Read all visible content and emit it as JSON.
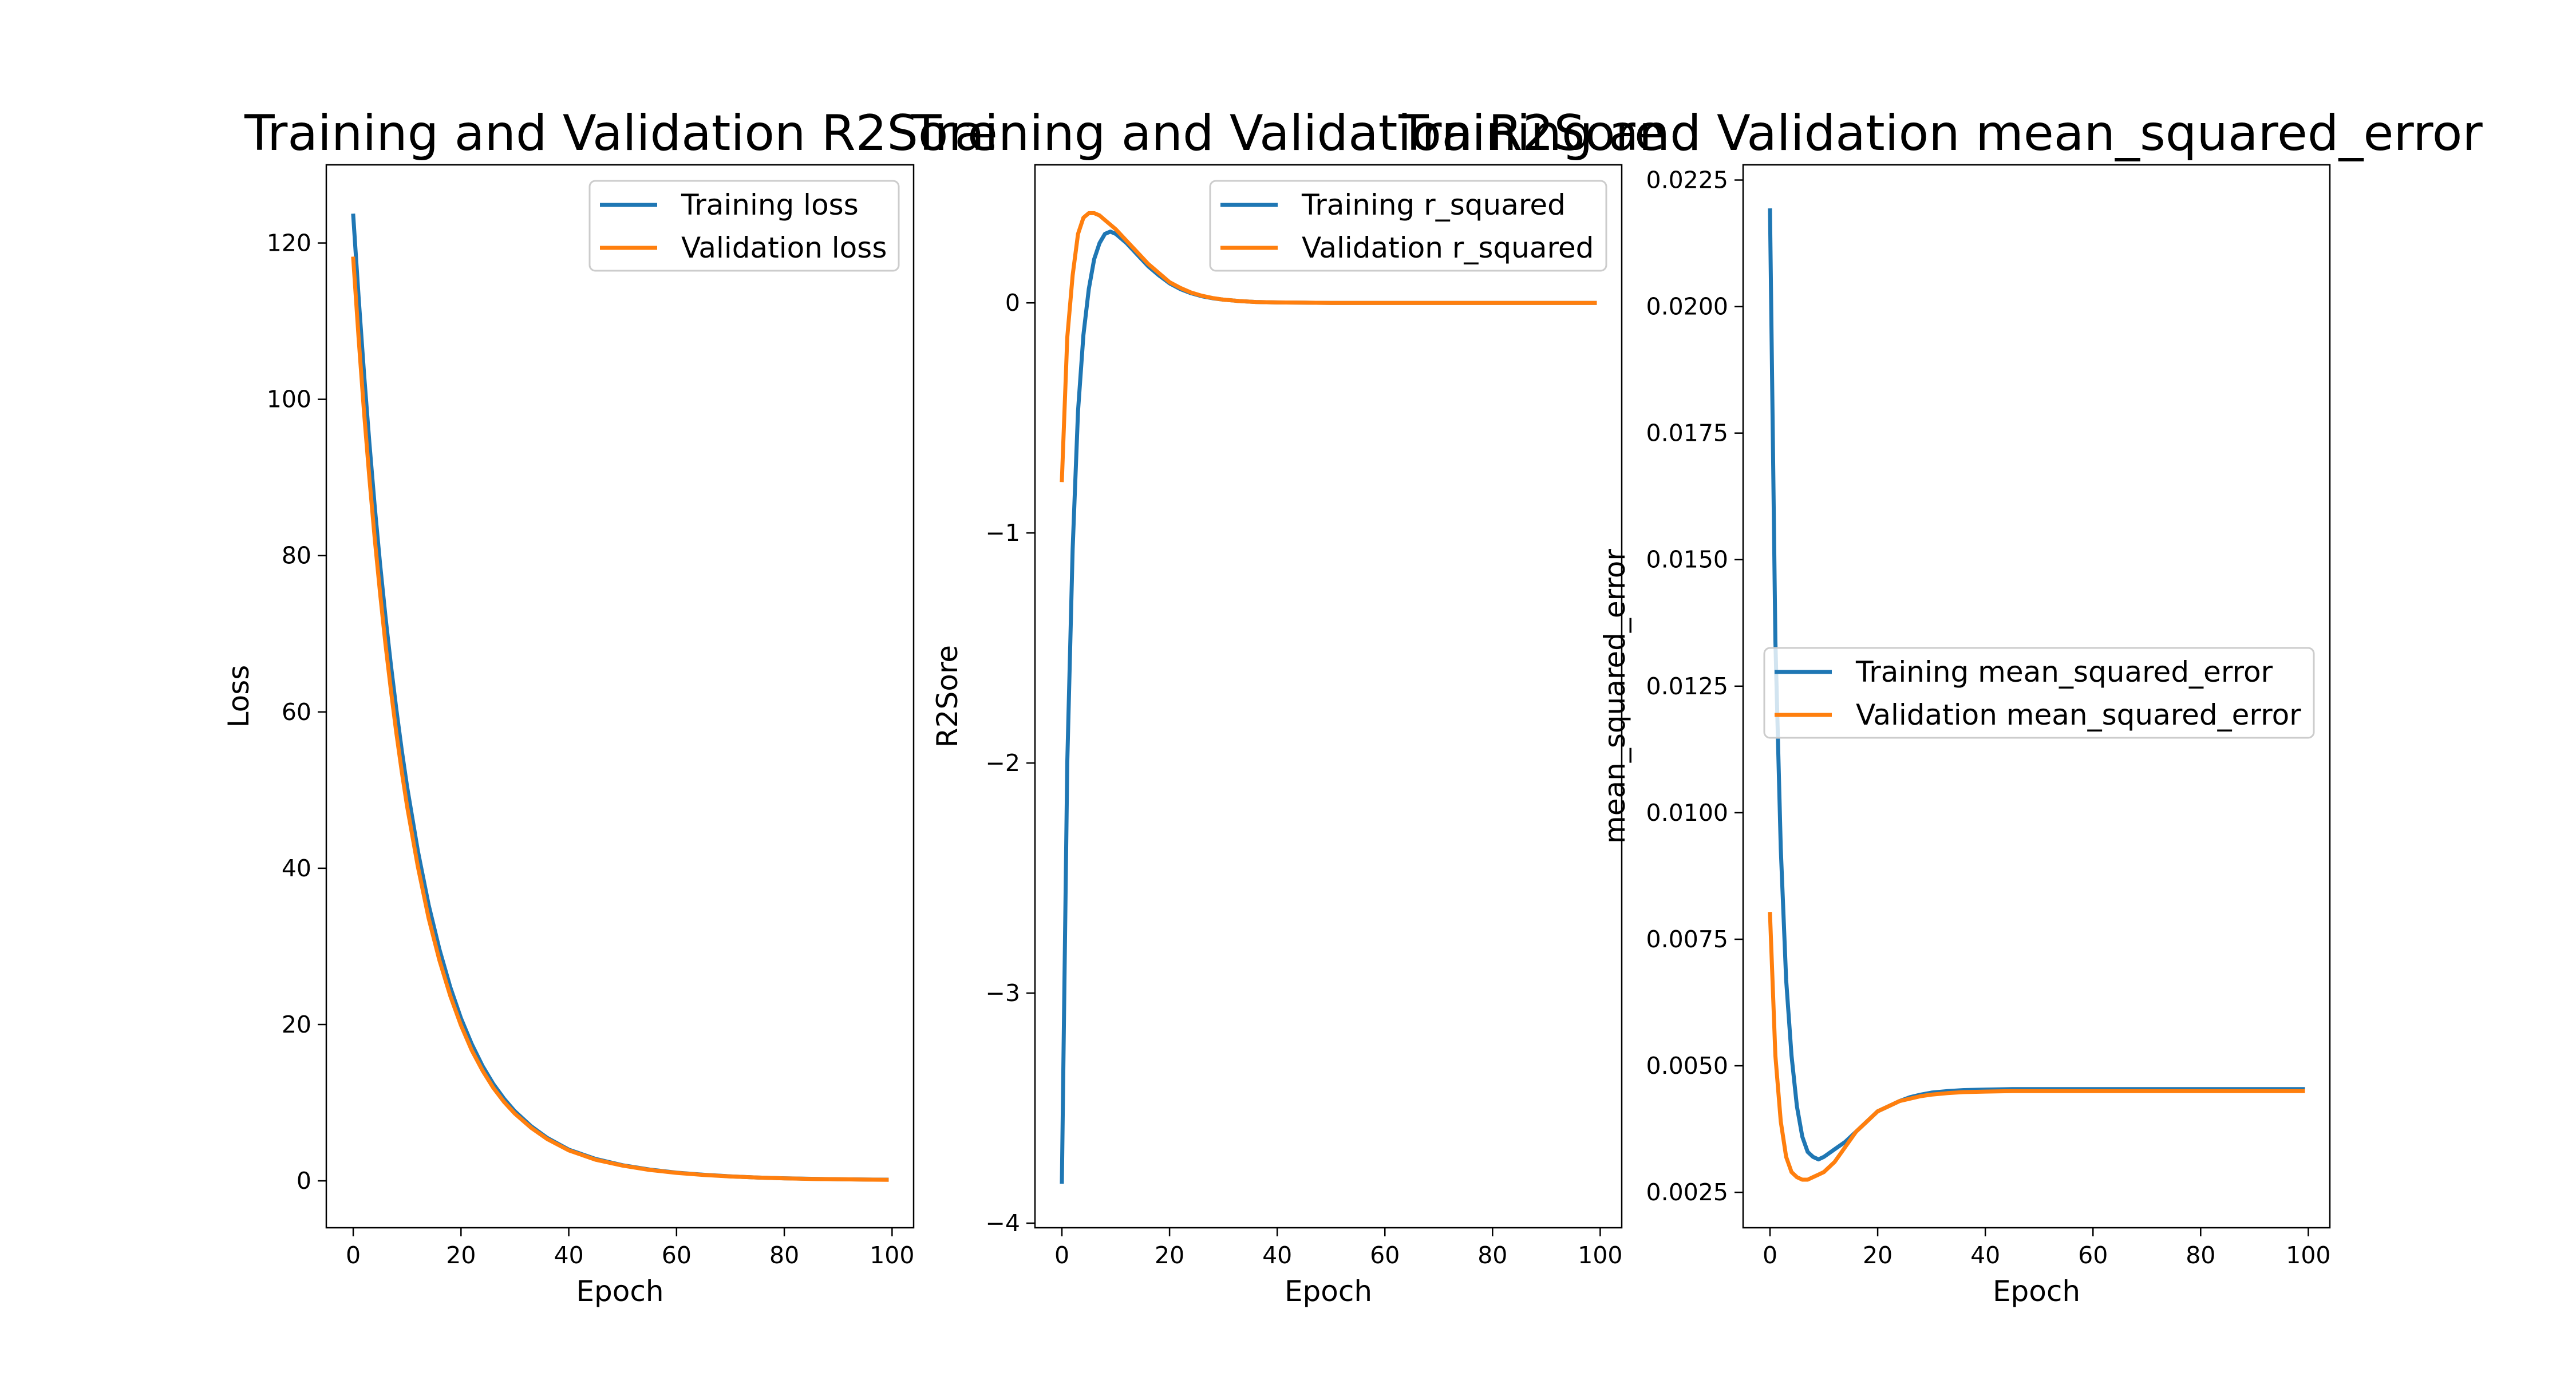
{
  "figure": {
    "background": "#ffffff",
    "line_colors": [
      "#1f77b4",
      "#ff7f0e"
    ]
  },
  "chart_data": [
    {
      "type": "line",
      "title": "Training and Validation R2Sore",
      "xlabel": "Epoch",
      "ylabel": "Loss",
      "xlim": [
        -5,
        104
      ],
      "ylim": [
        -6,
        130
      ],
      "xticks": [
        0,
        20,
        40,
        60,
        80,
        100
      ],
      "yticks": [
        0,
        20,
        40,
        60,
        80,
        100,
        120
      ],
      "legend": "top-right",
      "grid": false,
      "x": [
        0,
        1,
        2,
        3,
        4,
        5,
        6,
        7,
        8,
        9,
        10,
        12,
        14,
        16,
        18,
        20,
        22,
        24,
        26,
        28,
        30,
        33,
        36,
        40,
        45,
        50,
        55,
        60,
        65,
        70,
        75,
        80,
        85,
        90,
        95,
        99
      ],
      "series": [
        {
          "name": "Training loss",
          "color": "#1f77b4",
          "values": [
            123.5,
            113.0,
            103.3,
            94.4,
            86.2,
            78.8,
            72.1,
            65.9,
            60.3,
            55.1,
            50.4,
            42.2,
            35.3,
            29.6,
            24.8,
            20.8,
            17.5,
            14.7,
            12.4,
            10.5,
            8.9,
            7.0,
            5.5,
            4.0,
            2.8,
            2.0,
            1.45,
            1.05,
            0.78,
            0.58,
            0.43,
            0.33,
            0.26,
            0.21,
            0.17,
            0.15
          ]
        },
        {
          "name": "Validation loss",
          "color": "#ff7f0e",
          "values": [
            118.0,
            107.8,
            98.4,
            89.9,
            82.1,
            75.1,
            68.6,
            62.7,
            57.3,
            52.4,
            47.9,
            40.2,
            33.6,
            28.2,
            23.7,
            19.9,
            16.7,
            14.1,
            11.9,
            10.1,
            8.6,
            6.8,
            5.35,
            3.9,
            2.7,
            1.95,
            1.4,
            1.02,
            0.75,
            0.56,
            0.42,
            0.32,
            0.25,
            0.2,
            0.16,
            0.14
          ]
        }
      ]
    },
    {
      "type": "line",
      "title": "Training and Validation R2Sore",
      "xlabel": "Epoch",
      "ylabel": "R2Sore",
      "xlim": [
        -5,
        104
      ],
      "ylim": [
        -4.02,
        0.6
      ],
      "xticks": [
        0,
        20,
        40,
        60,
        80,
        100
      ],
      "yticks": [
        -4,
        -3,
        -2,
        -1,
        0
      ],
      "legend": "top-right",
      "grid": false,
      "x": [
        0,
        1,
        2,
        3,
        4,
        5,
        6,
        7,
        8,
        9,
        10,
        12,
        14,
        16,
        18,
        20,
        22,
        24,
        26,
        28,
        30,
        33,
        36,
        40,
        45,
        50,
        55,
        60,
        65,
        70,
        75,
        80,
        85,
        90,
        95,
        99
      ],
      "series": [
        {
          "name": "Training r_squared",
          "color": "#1f77b4",
          "values": [
            -3.82,
            -2.0,
            -1.07,
            -0.47,
            -0.14,
            0.06,
            0.19,
            0.26,
            0.3,
            0.31,
            0.3,
            0.26,
            0.21,
            0.16,
            0.12,
            0.085,
            0.06,
            0.042,
            0.029,
            0.02,
            0.014,
            0.008,
            0.004,
            0.002,
            0.001,
            0.0,
            0.0,
            0.0,
            0.0,
            0.0,
            0.0,
            0.0,
            0.0,
            0.0,
            0.0,
            0.0
          ]
        },
        {
          "name": "Validation r_squared",
          "color": "#ff7f0e",
          "values": [
            -0.77,
            -0.15,
            0.12,
            0.3,
            0.37,
            0.39,
            0.39,
            0.38,
            0.36,
            0.34,
            0.32,
            0.27,
            0.22,
            0.17,
            0.13,
            0.09,
            0.065,
            0.045,
            0.031,
            0.021,
            0.014,
            0.008,
            0.004,
            0.002,
            0.001,
            0.0,
            0.0,
            0.0,
            0.0,
            0.0,
            0.0,
            0.0,
            0.0,
            0.0,
            0.0,
            0.0
          ]
        }
      ]
    },
    {
      "type": "line",
      "title": "Training and Validation mean_squared_error",
      "xlabel": "Epoch",
      "ylabel": "mean_squared_error",
      "xlim": [
        -5,
        104
      ],
      "ylim": [
        0.0018,
        0.0228
      ],
      "xticks": [
        0,
        20,
        40,
        60,
        80,
        100
      ],
      "yticks": [
        0.0025,
        0.005,
        0.0075,
        0.01,
        0.0125,
        0.015,
        0.0175,
        0.02,
        0.0225
      ],
      "ytick_labels": [
        "0.0025",
        "0.0050",
        "0.0075",
        "0.0100",
        "0.0125",
        "0.0150",
        "0.0175",
        "0.0200",
        "0.0225"
      ],
      "legend": "center-right",
      "grid": false,
      "x": [
        0,
        1,
        2,
        3,
        4,
        5,
        6,
        7,
        8,
        9,
        10,
        12,
        14,
        16,
        18,
        20,
        22,
        24,
        26,
        28,
        30,
        33,
        36,
        40,
        45,
        50,
        55,
        60,
        65,
        70,
        75,
        80,
        85,
        90,
        95,
        99
      ],
      "series": [
        {
          "name": "Training mean_squared_error",
          "color": "#1f77b4",
          "values": [
            0.0219,
            0.0134,
            0.0093,
            0.0067,
            0.0052,
            0.0042,
            0.0036,
            0.0033,
            0.0032,
            0.00315,
            0.0032,
            0.00335,
            0.0035,
            0.0037,
            0.0039,
            0.0041,
            0.0042,
            0.0043,
            0.00438,
            0.00443,
            0.00447,
            0.0045,
            0.00452,
            0.00453,
            0.00454,
            0.00454,
            0.00454,
            0.00454,
            0.00454,
            0.00454,
            0.00454,
            0.00454,
            0.00454,
            0.00454,
            0.00454,
            0.00454
          ]
        },
        {
          "name": "Validation mean_squared_error",
          "color": "#ff7f0e",
          "values": [
            0.008,
            0.0052,
            0.0039,
            0.0032,
            0.0029,
            0.0028,
            0.00275,
            0.00275,
            0.0028,
            0.00285,
            0.0029,
            0.0031,
            0.0034,
            0.0037,
            0.0039,
            0.0041,
            0.0042,
            0.0043,
            0.00435,
            0.0044,
            0.00443,
            0.00446,
            0.00448,
            0.00449,
            0.0045,
            0.0045,
            0.0045,
            0.0045,
            0.0045,
            0.0045,
            0.0045,
            0.0045,
            0.0045,
            0.0045,
            0.0045,
            0.0045
          ]
        }
      ]
    }
  ]
}
